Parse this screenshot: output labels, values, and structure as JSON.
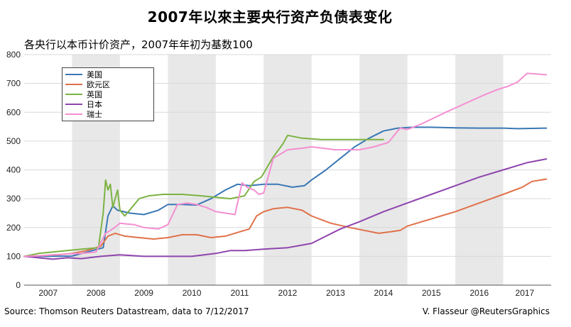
{
  "title": "2007年以來主要央行资产负债表变化",
  "subtitle": "各央行以本币计价资产，2007年年初为基数100",
  "source": "Source: Thomson Reuters Datastream, data to 7/12/2017",
  "credit": "V. Flasseur @ReutersGraphics",
  "chart_data": {
    "type": "line",
    "x_unit": "year",
    "xlim": [
      2007.0,
      2018.0
    ],
    "ylim": [
      0,
      800
    ],
    "yticks": [
      0,
      100,
      200,
      300,
      400,
      500,
      600,
      700,
      800
    ],
    "xticks": [
      {
        "label": "2007",
        "x": 2007.5
      },
      {
        "label": "2008",
        "x": 2008.5
      },
      {
        "label": "2009",
        "x": 2009.5
      },
      {
        "label": "2010",
        "x": 2010.5
      },
      {
        "label": "2011",
        "x": 2011.5
      },
      {
        "label": "2012",
        "x": 2012.5
      },
      {
        "label": "2013",
        "x": 2013.5
      },
      {
        "label": "2014",
        "x": 2014.5
      },
      {
        "label": "2015",
        "x": 2015.5
      },
      {
        "label": "2016",
        "x": 2016.5
      },
      {
        "label": "2017",
        "x": 2017.45
      }
    ],
    "shaded_years": [
      2008,
      2010,
      2012,
      2014,
      2016
    ],
    "grid": "horizontal",
    "legend_position": "top-left",
    "series": [
      {
        "name": "美国",
        "color": "#3a78b5",
        "x": [
          2007.0,
          2007.5,
          2008.0,
          2008.65,
          2008.75,
          2008.85,
          2008.95,
          2009.2,
          2009.5,
          2009.8,
          2010.0,
          2010.3,
          2010.6,
          2010.9,
          2011.2,
          2011.45,
          2011.7,
          2012.0,
          2012.3,
          2012.6,
          2012.85,
          2013.0,
          2013.3,
          2013.6,
          2013.9,
          2014.2,
          2014.5,
          2014.8,
          2015.1,
          2015.5,
          2016.0,
          2016.5,
          2017.0,
          2017.3,
          2017.9
        ],
        "y": [
          100,
          100,
          101,
          130,
          240,
          275,
          260,
          250,
          245,
          260,
          280,
          280,
          278,
          300,
          330,
          350,
          345,
          350,
          350,
          340,
          345,
          365,
          400,
          440,
          480,
          510,
          535,
          545,
          548,
          548,
          546,
          545,
          545,
          543,
          545
        ]
      },
      {
        "name": "欧元区",
        "color": "#e0714a",
        "x": [
          2007.0,
          2007.3,
          2007.7,
          2008.0,
          2008.3,
          2008.6,
          2008.75,
          2008.9,
          2009.1,
          2009.4,
          2009.7,
          2010.0,
          2010.3,
          2010.6,
          2010.9,
          2011.2,
          2011.5,
          2011.7,
          2011.85,
          2012.0,
          2012.2,
          2012.5,
          2012.8,
          2013.0,
          2013.4,
          2013.8,
          2014.1,
          2014.4,
          2014.65,
          2014.85,
          2015.0,
          2015.5,
          2016.0,
          2016.5,
          2017.0,
          2017.4,
          2017.6,
          2017.9
        ],
        "y": [
          100,
          102,
          105,
          110,
          120,
          135,
          170,
          180,
          170,
          165,
          160,
          165,
          175,
          175,
          165,
          170,
          185,
          195,
          240,
          255,
          265,
          270,
          260,
          240,
          215,
          200,
          190,
          180,
          185,
          190,
          205,
          230,
          255,
          285,
          315,
          340,
          360,
          368
        ]
      },
      {
        "name": "英国",
        "color": "#7cb342",
        "x": [
          2007.0,
          2007.3,
          2007.6,
          2007.9,
          2008.2,
          2008.55,
          2008.65,
          2008.7,
          2008.75,
          2008.8,
          2008.85,
          2008.95,
          2009.0,
          2009.1,
          2009.25,
          2009.4,
          2009.6,
          2009.9,
          2010.3,
          2010.7,
          2011.0,
          2011.3,
          2011.6,
          2011.8,
          2011.95,
          2012.2,
          2012.4,
          2012.5,
          2012.8,
          2013.2,
          2013.8,
          2014.3,
          2014.5
        ],
        "y": [
          100,
          110,
          115,
          120,
          125,
          130,
          250,
          365,
          330,
          350,
          270,
          330,
          260,
          240,
          270,
          300,
          310,
          315,
          315,
          310,
          305,
          300,
          310,
          360,
          375,
          445,
          490,
          520,
          510,
          505,
          505,
          505,
          505
        ]
      },
      {
        "name": "日本",
        "color": "#8e44ad",
        "x": [
          2007.0,
          2007.3,
          2007.6,
          2007.9,
          2008.2,
          2008.6,
          2009.0,
          2009.5,
          2010.0,
          2010.5,
          2011.0,
          2011.3,
          2011.6,
          2012.0,
          2012.5,
          2013.0,
          2013.3,
          2013.6,
          2014.0,
          2014.5,
          2015.0,
          2015.5,
          2016.0,
          2016.5,
          2017.0,
          2017.5,
          2017.9
        ],
        "y": [
          100,
          95,
          90,
          95,
          92,
          100,
          105,
          100,
          100,
          100,
          110,
          120,
          120,
          125,
          130,
          145,
          170,
          195,
          220,
          255,
          285,
          315,
          345,
          375,
          400,
          425,
          438
        ]
      },
      {
        "name": "瑞士",
        "color": "#f48fd2",
        "x": [
          2007.0,
          2007.3,
          2007.6,
          2007.9,
          2008.2,
          2008.5,
          2008.7,
          2008.85,
          2009.0,
          2009.3,
          2009.5,
          2009.8,
          2010.0,
          2010.2,
          2010.4,
          2010.6,
          2010.8,
          2011.0,
          2011.2,
          2011.4,
          2011.55,
          2011.65,
          2011.8,
          2011.9,
          2012.0,
          2012.2,
          2012.5,
          2012.8,
          2013.0,
          2013.5,
          2014.0,
          2014.3,
          2014.6,
          2014.85,
          2015.0,
          2015.3,
          2015.8,
          2016.2,
          2016.6,
          2016.9,
          2017.1,
          2017.3,
          2017.5,
          2017.9
        ],
        "y": [
          100,
          102,
          105,
          108,
          110,
          115,
          180,
          195,
          215,
          210,
          200,
          195,
          210,
          280,
          285,
          280,
          270,
          255,
          250,
          245,
          355,
          340,
          330,
          315,
          320,
          440,
          470,
          475,
          480,
          470,
          470,
          480,
          495,
          545,
          540,
          560,
          600,
          630,
          660,
          680,
          690,
          705,
          735,
          730
        ]
      }
    ]
  }
}
